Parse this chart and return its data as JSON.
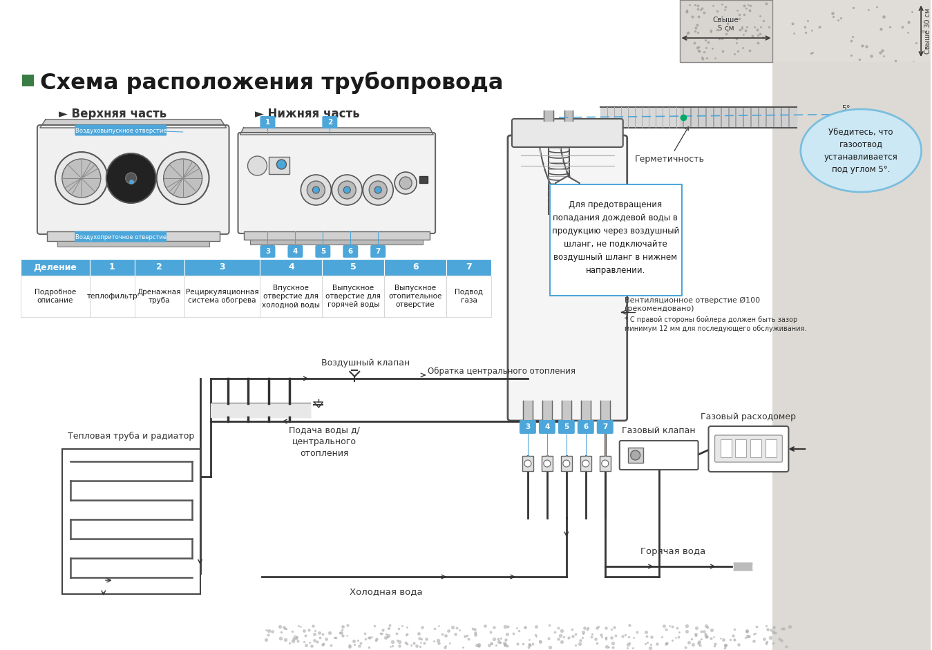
{
  "bg_color": "#ffffff",
  "title": "Схема расположения трубопровода",
  "green_square_color": "#3a7d44",
  "subtitle_upper": "► Верхняя часть",
  "subtitle_lower": "► Нижняя часть",
  "table_header_color": "#4da6d9",
  "table_divisions": [
    "Деление",
    "1",
    "2",
    "3",
    "4",
    "5",
    "6",
    "7"
  ],
  "table_descriptions": [
    "Подробное\nописание",
    "теплофильтр",
    "Дренажная\nтруба",
    "Рециркуляционная\nсистема обогрева",
    "Впускное\nотверстие для\nхолодной воды",
    "Выпускное\nотверстие для\nгорячей воды",
    "Выпускное\nотопительное\nотверстие",
    "Подвод\nгаза"
  ],
  "note_box_text": "Для предотвращения\nпопадания дождевой воды в\nпродукцию через воздушный\nшланг, не подключайте\nвоздушный шланг в нижнем\nнаправлении.",
  "bubble_text": "Убедитесь, что\nгазоотвод\nустанавливается\nпод углом 5°.",
  "label_герметичность": "Герметичность",
  "label_вент": "Вентиляционное отверстие Ø100\n(рекомендовано)",
  "label_вент_note": "* С правой стороны бойлера должен быть зазор\nминимум 12 мм для последующего обслуживания.",
  "label_свыше5": "Свыше\n5 см",
  "label_свыше30": "Свыше 30 см",
  "label_air_valve": "Воздушный клапан",
  "label_return": "Обратка центрального отопления",
  "label_heat_pipe": "Тепловая труба и радиатор",
  "label_supply": "Подача воды д/\nцентрального\nотопления",
  "label_cold": "Холодная вода",
  "label_hot": "Горячая вода",
  "label_gas_meter": "Газовый расходомер",
  "label_gas_valve": "Газовый клапан",
  "label_top_label1": "Воздуховыпускное отверстие",
  "label_top_label2": "Воздухоприточное отверстие",
  "lc": "#333333",
  "blue": "#4da6d9"
}
